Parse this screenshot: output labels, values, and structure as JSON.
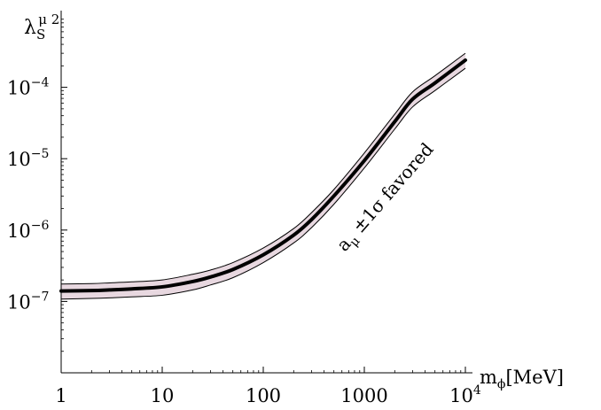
{
  "chart_data": {
    "type": "line",
    "xscale": "log",
    "yscale": "log",
    "xlim": [
      1,
      10000
    ],
    "ylim": [
      1e-08,
      0.001
    ],
    "x_ticks": [
      {
        "value": 1,
        "label": "1"
      },
      {
        "value": 10,
        "label": "10"
      },
      {
        "value": 100,
        "label": "100"
      },
      {
        "value": 1000,
        "label": "1000"
      },
      {
        "value": 10000,
        "base": "10",
        "exp": "4"
      }
    ],
    "y_ticks": [
      {
        "value": 1e-07,
        "base": "10",
        "exp": "−7"
      },
      {
        "value": 1e-06,
        "base": "10",
        "exp": "−6"
      },
      {
        "value": 1e-05,
        "base": "10",
        "exp": "−5"
      },
      {
        "value": 0.0001,
        "base": "10",
        "exp": "−4"
      }
    ],
    "ylabel": {
      "main": "λ",
      "sub": "S",
      "sup": "μ 2"
    },
    "xlabel": {
      "main": "m",
      "sub": "ϕ",
      "rest": "[MeV]"
    },
    "annotation": {
      "part1": "a",
      "sub": "μ",
      "part2": " ±1σ favored"
    },
    "band_color": "#e8d8e0",
    "line_color": "#000000",
    "series": [
      {
        "role": "central",
        "x": [
          1,
          2,
          3,
          5,
          10,
          20,
          30,
          50,
          100,
          200,
          300,
          500,
          1000,
          2000,
          3000,
          5000,
          10000
        ],
        "y": [
          1.4e-07,
          1.42e-07,
          1.45e-07,
          1.5e-07,
          1.6e-07,
          1.9e-07,
          2.2e-07,
          2.8e-07,
          4.5e-07,
          8.5e-07,
          1.4e-06,
          3e-06,
          9.4e-06,
          3.3e-05,
          6.8e-05,
          0.000115,
          0.00024
        ]
      },
      {
        "role": "upper",
        "x": [
          1,
          2,
          3,
          5,
          10,
          20,
          30,
          50,
          100,
          200,
          300,
          500,
          1000,
          2000,
          3000,
          5000,
          10000
        ],
        "y": [
          1.75e-07,
          1.78e-07,
          1.82e-07,
          1.88e-07,
          2e-07,
          2.4e-07,
          2.75e-07,
          3.5e-07,
          5.6e-07,
          1.05e-06,
          1.75e-06,
          3.7e-06,
          1.2e-05,
          4.2e-05,
          8.6e-05,
          0.000145,
          0.0003
        ]
      },
      {
        "role": "lower",
        "x": [
          1,
          2,
          3,
          5,
          10,
          20,
          30,
          50,
          100,
          200,
          300,
          500,
          1000,
          2000,
          3000,
          5000,
          10000
        ],
        "y": [
          1.08e-07,
          1.1e-07,
          1.12e-07,
          1.16e-07,
          1.22e-07,
          1.45e-07,
          1.7e-07,
          2.15e-07,
          3.5e-07,
          6.6e-07,
          1.08e-06,
          2.3e-06,
          7.4e-06,
          2.6e-05,
          5.3e-05,
          9e-05,
          0.000185
        ]
      }
    ]
  }
}
